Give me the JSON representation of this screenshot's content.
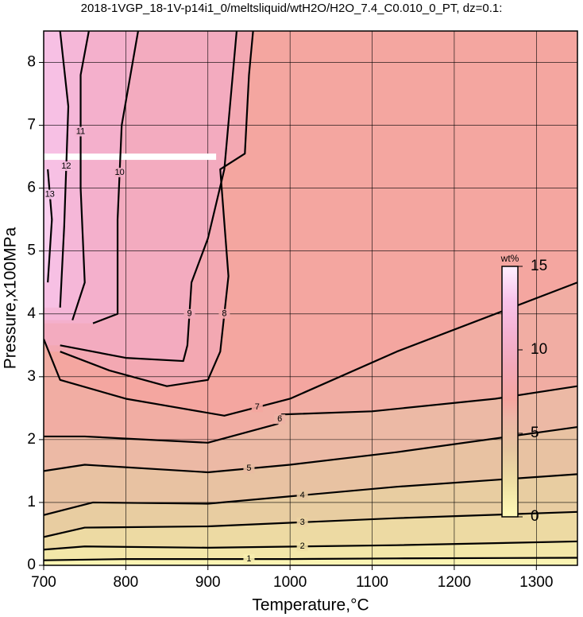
{
  "chart_data": {
    "type": "contour",
    "title": "2018-1VGP_18-1V-p14i1_0/meltsliquid/wtH2O/H2O_7.4_C0.010_0_PT, dz=0.1:",
    "xlabel": "Temperature,°C",
    "ylabel": "Pressure,x100MPa",
    "xlim": [
      700,
      1350
    ],
    "ylim": [
      0,
      8.5
    ],
    "xticks": [
      700,
      800,
      900,
      1000,
      1100,
      1200,
      1300
    ],
    "yticks": [
      0,
      1,
      2,
      3,
      4,
      5,
      6,
      7,
      8
    ],
    "grid": true,
    "colorbar": {
      "label": "wt%",
      "lim": [
        0,
        15
      ],
      "ticks": [
        0,
        5,
        10,
        15
      ]
    },
    "colorscale": [
      [
        0,
        "#fffbb8"
      ],
      [
        2,
        "#efe0a4"
      ],
      [
        4,
        "#e6c6a0"
      ],
      [
        6,
        "#eeb4a6"
      ],
      [
        7,
        "#f4a6a0"
      ],
      [
        9,
        "#f2a8b8"
      ],
      [
        11,
        "#f4b2d2"
      ],
      [
        13,
        "#f8c4ea"
      ],
      [
        15,
        "#fff0ff"
      ]
    ],
    "contours": [
      {
        "level": 1,
        "x": [
          700,
          800,
          900,
          1000,
          1130,
          1350
        ],
        "y": [
          0.08,
          0.1,
          0.1,
          0.1,
          0.11,
          0.12
        ]
      },
      {
        "level": 2,
        "x": [
          700,
          750,
          900,
          1130,
          1350
        ],
        "y": [
          0.25,
          0.3,
          0.28,
          0.32,
          0.38
        ]
      },
      {
        "level": 3,
        "x": [
          700,
          750,
          900,
          1130,
          1350
        ],
        "y": [
          0.45,
          0.6,
          0.62,
          0.75,
          0.85
        ]
      },
      {
        "level": 4,
        "x": [
          700,
          760,
          900,
          1130,
          1350
        ],
        "y": [
          0.8,
          1.0,
          0.98,
          1.25,
          1.45
        ]
      },
      {
        "level": 5,
        "x": [
          700,
          750,
          900,
          1000,
          1130,
          1350
        ],
        "y": [
          1.5,
          1.6,
          1.48,
          1.6,
          1.8,
          2.2
        ]
      },
      {
        "level": 6,
        "x": [
          700,
          750,
          900,
          985,
          990,
          1100,
          1250,
          1350
        ],
        "y": [
          2.05,
          2.05,
          1.95,
          2.25,
          2.4,
          2.45,
          2.65,
          2.85
        ]
      },
      {
        "level": 7,
        "x": [
          700,
          720,
          800,
          920,
          1000,
          1130,
          1350
        ],
        "y": [
          3.6,
          2.95,
          2.65,
          2.38,
          2.65,
          3.4,
          4.5
        ]
      },
      {
        "level": 8,
        "x": [
          720,
          780,
          850,
          900,
          915,
          925,
          915,
          945,
          950,
          955
        ],
        "y": [
          3.4,
          3.1,
          2.85,
          2.95,
          3.4,
          4.6,
          6.3,
          6.55,
          7.8,
          8.5
        ]
      },
      {
        "level": 9,
        "x": [
          720,
          800,
          870,
          875,
          880,
          900,
          920,
          935
        ],
        "y": [
          3.5,
          3.3,
          3.25,
          3.5,
          4.5,
          5.2,
          6.3,
          8.5
        ]
      },
      {
        "level": 10,
        "x": [
          760,
          790,
          790,
          795,
          815
        ],
        "y": [
          3.85,
          4.0,
          5.5,
          7.0,
          8.5
        ]
      },
      {
        "level": 11,
        "x": [
          735,
          750,
          745,
          745,
          755
        ],
        "y": [
          3.9,
          4.5,
          6.0,
          7.8,
          8.5
        ]
      },
      {
        "level": 12,
        "x": [
          720,
          725,
          730,
          720
        ],
        "y": [
          4.1,
          5.4,
          7.3,
          8.5
        ]
      },
      {
        "level": 13,
        "x": [
          705,
          710,
          705
        ],
        "y": [
          4.5,
          5.5,
          6.3
        ]
      }
    ]
  }
}
